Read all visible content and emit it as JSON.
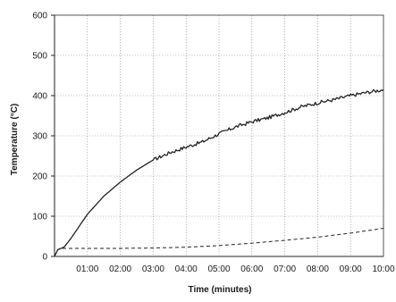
{
  "chart_data": {
    "type": "line",
    "title": "",
    "xlabel": "Time (minutes)",
    "ylabel": "Temperature (°C)",
    "xlim": [
      0,
      10
    ],
    "ylim": [
      0,
      600
    ],
    "y_ticks": [
      0,
      100,
      200,
      300,
      400,
      500,
      600
    ],
    "x_ticks": [
      {
        "value": 1,
        "label": "01:00"
      },
      {
        "value": 2,
        "label": "02:00"
      },
      {
        "value": 3,
        "label": "03:00"
      },
      {
        "value": 4,
        "label": "04:00"
      },
      {
        "value": 5,
        "label": "05:00"
      },
      {
        "value": 6,
        "label": "06:00"
      },
      {
        "value": 7,
        "label": "07:00"
      },
      {
        "value": 8,
        "label": "08:00"
      },
      {
        "value": 9,
        "label": "09:00"
      },
      {
        "value": 10,
        "label": "10:00"
      }
    ],
    "grid": true,
    "legend": "none",
    "series": [
      {
        "style": "solid",
        "color": "#222222",
        "x": [
          0,
          0.1,
          0.2,
          0.3,
          0.5,
          0.75,
          1.0,
          1.5,
          2.0,
          2.5,
          3.0,
          3.5,
          4.0,
          4.5,
          5.0,
          5.5,
          6.0,
          6.5,
          7.0,
          7.5,
          8.0,
          8.5,
          9.0,
          9.5,
          10.0
        ],
        "y": [
          0,
          17,
          20,
          24,
          45,
          75,
          105,
          150,
          185,
          215,
          240,
          258,
          272,
          285,
          305,
          322,
          335,
          345,
          358,
          372,
          382,
          390,
          400,
          408,
          415
        ]
      },
      {
        "style": "dashed",
        "color": "#222222",
        "x": [
          0,
          0.1,
          0.2,
          0.3,
          0.5,
          1,
          2,
          3,
          4,
          5,
          6,
          7,
          8,
          9,
          10
        ],
        "y": [
          0,
          17,
          20,
          20,
          20,
          20,
          20,
          21,
          23,
          27,
          33,
          40,
          48,
          58,
          70
        ]
      }
    ]
  }
}
